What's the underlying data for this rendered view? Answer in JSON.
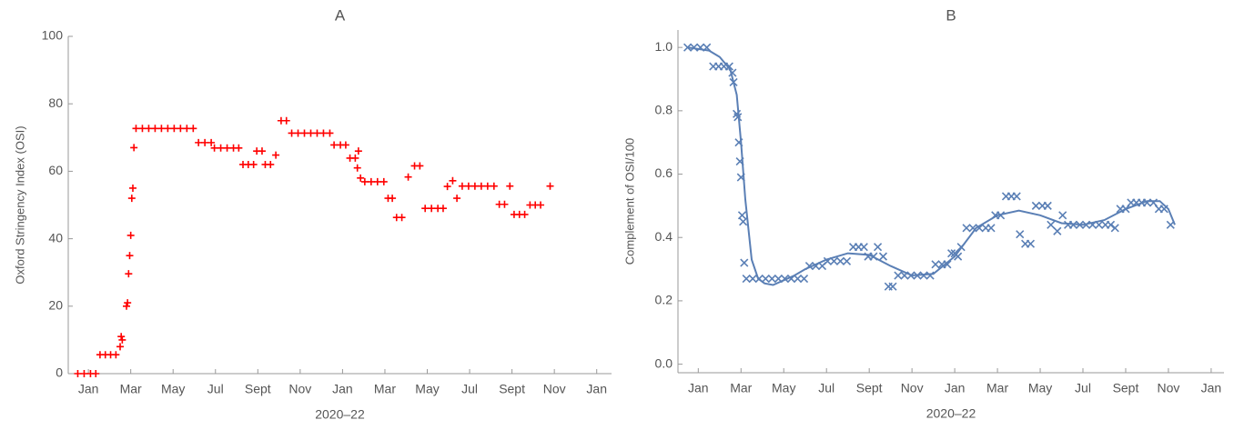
{
  "chart_data": [
    {
      "type": "scatter",
      "title": "A",
      "x_label": "2020–22",
      "y_label": "Oxford Stringency Index (OSI)",
      "marker": "+",
      "color": "#ff0000",
      "xlim": [
        -0.95,
        24.7
      ],
      "ylim": [
        0,
        100
      ],
      "xticks": [
        {
          "value": 0,
          "label": "Jan"
        },
        {
          "value": 2,
          "label": "Mar"
        },
        {
          "value": 4,
          "label": "May"
        },
        {
          "value": 6,
          "label": "Jul"
        },
        {
          "value": 8,
          "label": "Sept"
        },
        {
          "value": 10,
          "label": "Nov"
        },
        {
          "value": 12,
          "label": "Jan"
        },
        {
          "value": 14,
          "label": "Mar"
        },
        {
          "value": 16,
          "label": "May"
        },
        {
          "value": 18,
          "label": "Jul"
        },
        {
          "value": 20,
          "label": "Sept"
        },
        {
          "value": 22,
          "label": "Nov"
        },
        {
          "value": 24,
          "label": "Jan"
        }
      ],
      "yticks": [
        0,
        20,
        40,
        60,
        80,
        100
      ],
      "x": [
        -0.5,
        -0.2,
        0.1,
        0.35,
        0.55,
        0.8,
        1.05,
        1.3,
        1.5,
        1.55,
        1.6,
        1.8,
        1.85,
        1.9,
        1.95,
        2.0,
        2.05,
        2.1,
        2.15,
        2.25,
        2.55,
        2.85,
        3.15,
        3.45,
        3.75,
        4.05,
        4.35,
        4.65,
        4.95,
        5.2,
        5.5,
        5.8,
        5.95,
        6.25,
        6.55,
        6.85,
        7.1,
        7.3,
        7.55,
        7.8,
        7.95,
        8.2,
        8.35,
        8.6,
        8.85,
        9.1,
        9.35,
        9.6,
        9.9,
        10.2,
        10.5,
        10.8,
        11.1,
        11.4,
        11.6,
        11.9,
        12.15,
        12.35,
        12.6,
        12.7,
        12.75,
        12.85,
        13.05,
        13.35,
        13.65,
        13.95,
        14.15,
        14.35,
        14.55,
        14.8,
        15.1,
        15.4,
        15.65,
        15.9,
        16.2,
        16.5,
        16.75,
        16.95,
        17.2,
        17.4,
        17.65,
        17.95,
        18.25,
        18.55,
        18.85,
        19.15,
        19.4,
        19.65,
        19.9,
        20.1,
        20.35,
        20.6,
        20.85,
        21.1,
        21.35,
        21.8
      ],
      "values": [
        0,
        0,
        0,
        0,
        5.6,
        5.6,
        5.6,
        5.6,
        8,
        11,
        10,
        20,
        21,
        29.6,
        35,
        41,
        52,
        55,
        67,
        72.7,
        72.7,
        72.7,
        72.7,
        72.7,
        72.7,
        72.7,
        72.7,
        72.7,
        72.7,
        68.5,
        68.5,
        68.5,
        66.9,
        66.9,
        66.9,
        66.9,
        66.9,
        62,
        62,
        62,
        66,
        66,
        62,
        62,
        64.8,
        75,
        75,
        71.3,
        71.3,
        71.3,
        71.3,
        71.3,
        71.3,
        71.3,
        67.8,
        67.8,
        67.8,
        63.9,
        63.9,
        61,
        66,
        58,
        56.9,
        56.9,
        56.9,
        56.9,
        52,
        52,
        46.3,
        46.3,
        58.3,
        61.6,
        61.6,
        49,
        49,
        49,
        49,
        55.5,
        57.2,
        52,
        55.6,
        55.6,
        55.6,
        55.6,
        55.6,
        55.6,
        50.2,
        50.2,
        55.6,
        47.2,
        47.2,
        47.2,
        50,
        50,
        50,
        55.6
      ]
    },
    {
      "type": "scatter",
      "title": "B",
      "x_label": "2020–22",
      "y_label": "Complement of OSI/100",
      "marker": "x",
      "color": "#5a7fb5",
      "xlim": [
        -0.95,
        24.6
      ],
      "ylim": [
        -0.027,
        1.055
      ],
      "xticks": [
        {
          "value": 0,
          "label": "Jan"
        },
        {
          "value": 2,
          "label": "Mar"
        },
        {
          "value": 4,
          "label": "May"
        },
        {
          "value": 6,
          "label": "Jul"
        },
        {
          "value": 8,
          "label": "Sept"
        },
        {
          "value": 10,
          "label": "Nov"
        },
        {
          "value": 12,
          "label": "Jan"
        },
        {
          "value": 14,
          "label": "Mar"
        },
        {
          "value": 16,
          "label": "May"
        },
        {
          "value": 18,
          "label": "Jul"
        },
        {
          "value": 20,
          "label": "Sept"
        },
        {
          "value": 22,
          "label": "Nov"
        },
        {
          "value": 24,
          "label": "Jan"
        }
      ],
      "yticks": [
        {
          "value": 0,
          "label": "0.0"
        },
        0.2,
        0.4,
        0.6,
        0.8,
        {
          "value": 1,
          "label": "1.0"
        }
      ],
      "x": [
        -0.5,
        -0.2,
        0.1,
        0.4,
        0.7,
        0.95,
        1.2,
        1.45,
        1.6,
        1.65,
        1.8,
        1.85,
        1.9,
        1.95,
        2.0,
        2.05,
        2.1,
        2.15,
        2.25,
        2.55,
        2.85,
        3.15,
        3.45,
        3.75,
        4.05,
        4.35,
        4.65,
        4.95,
        5.2,
        5.5,
        5.8,
        6.05,
        6.35,
        6.65,
        6.95,
        7.25,
        7.5,
        7.75,
        7.95,
        8.2,
        8.4,
        8.65,
        8.9,
        9.1,
        9.35,
        9.65,
        9.95,
        10.25,
        10.55,
        10.85,
        11.1,
        11.4,
        11.65,
        11.85,
        12.0,
        12.15,
        12.3,
        12.55,
        12.85,
        13.15,
        13.45,
        13.7,
        13.9,
        14.15,
        14.4,
        14.65,
        14.9,
        15.05,
        15.3,
        15.55,
        15.8,
        16.1,
        16.35,
        16.5,
        16.8,
        17.05,
        17.3,
        17.55,
        17.85,
        18.15,
        18.45,
        18.75,
        19.05,
        19.3,
        19.5,
        19.75,
        20.0,
        20.25,
        20.5,
        20.75,
        21.0,
        21.3,
        21.55,
        21.8,
        22.1
      ],
      "values": [
        1,
        1,
        1,
        1,
        0.94,
        0.94,
        0.94,
        0.94,
        0.92,
        0.89,
        0.79,
        0.78,
        0.7,
        0.64,
        0.59,
        0.47,
        0.45,
        0.32,
        0.27,
        0.27,
        0.27,
        0.27,
        0.27,
        0.27,
        0.27,
        0.27,
        0.27,
        0.27,
        0.31,
        0.31,
        0.31,
        0.325,
        0.325,
        0.325,
        0.325,
        0.37,
        0.37,
        0.37,
        0.34,
        0.34,
        0.37,
        0.34,
        0.245,
        0.245,
        0.28,
        0.28,
        0.28,
        0.28,
        0.28,
        0.28,
        0.315,
        0.315,
        0.315,
        0.35,
        0.35,
        0.34,
        0.37,
        0.43,
        0.43,
        0.43,
        0.43,
        0.43,
        0.47,
        0.47,
        0.53,
        0.53,
        0.53,
        0.41,
        0.38,
        0.38,
        0.5,
        0.5,
        0.5,
        0.44,
        0.42,
        0.47,
        0.44,
        0.44,
        0.44,
        0.44,
        0.44,
        0.44,
        0.44,
        0.44,
        0.43,
        0.49,
        0.49,
        0.51,
        0.51,
        0.51,
        0.51,
        0.51,
        0.49,
        0.49,
        0.44
      ],
      "fit": {
        "x": [
          -0.5,
          0.5,
          1.0,
          1.5,
          1.8,
          2.0,
          2.2,
          2.5,
          2.8,
          3.1,
          3.5,
          4.0,
          4.5,
          5.0,
          6.0,
          7.0,
          8.0,
          9.0,
          10.0,
          11.0,
          12.0,
          13.0,
          14.0,
          15.0,
          16.0,
          17.0,
          18.0,
          19.0,
          20.0,
          21.0,
          21.6,
          22.0,
          22.3
        ],
        "values": [
          1.0,
          0.99,
          0.97,
          0.93,
          0.85,
          0.7,
          0.52,
          0.33,
          0.27,
          0.255,
          0.25,
          0.265,
          0.28,
          0.3,
          0.33,
          0.35,
          0.345,
          0.31,
          0.28,
          0.285,
          0.34,
          0.43,
          0.47,
          0.485,
          0.47,
          0.445,
          0.44,
          0.455,
          0.49,
          0.515,
          0.515,
          0.49,
          0.44
        ]
      }
    }
  ]
}
